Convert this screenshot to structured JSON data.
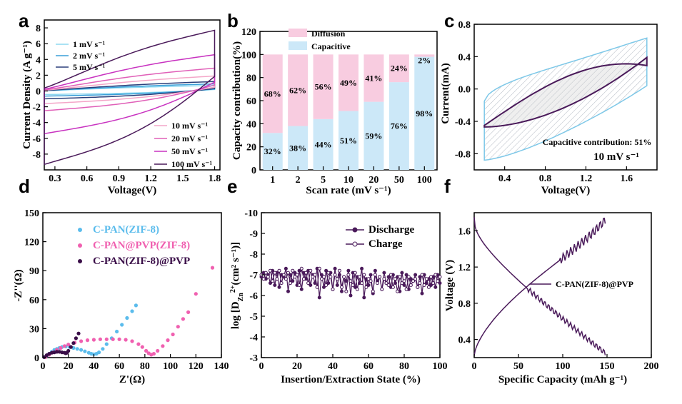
{
  "panels": [
    "a",
    "b",
    "c",
    "d",
    "e",
    "f"
  ],
  "chart_data": [
    {
      "panel": "a",
      "type": "line",
      "xlabel": "Voltage(V)",
      "ylabel": "Current Density (A g⁻¹)",
      "xlim": [
        0.2,
        1.85
      ],
      "ylim": [
        -10,
        9
      ],
      "xticks": [
        "0.3",
        "0.6",
        "0.9",
        "1.2",
        "1.5",
        "1.8"
      ],
      "xtick_values": [
        0.3,
        0.6,
        0.9,
        1.2,
        1.5,
        1.8
      ],
      "yticks": [
        "-8",
        "-6",
        "-4",
        "-2",
        "0",
        "2",
        "4",
        "6",
        "8"
      ],
      "ytick_values": [
        -8,
        -6,
        -4,
        -2,
        0,
        2,
        4,
        6,
        8
      ],
      "series": [
        {
          "name": "1 mV s⁻¹",
          "color": "#8ed8f0",
          "upper": 0.7,
          "lower": -0.45
        },
        {
          "name": "2 mV s⁻¹",
          "color": "#3a9fd8",
          "upper": 0.9,
          "lower": -0.65
        },
        {
          "name": "5 mV s⁻¹",
          "color": "#2b3f7a",
          "upper": 1.2,
          "lower": -1.0
        },
        {
          "name": "10 mV s⁻¹",
          "color": "#f4a6c8",
          "upper": 1.9,
          "lower": -1.6
        },
        {
          "name": "20 mV s⁻¹",
          "color": "#e060b8",
          "upper": 2.9,
          "lower": -2.5
        },
        {
          "name": "50 mV s⁻¹",
          "color": "#c832c0",
          "upper": 4.6,
          "lower": -5.4
        },
        {
          "name": "100 mV s⁻¹",
          "color": "#4a1a5a",
          "upper": 7.7,
          "lower": -9.3
        }
      ]
    },
    {
      "panel": "b",
      "type": "bar",
      "xlabel": "Scan rate (mV s⁻¹)",
      "ylabel": "Capacity contribution(%)",
      "categories": [
        "1",
        "2",
        "5",
        "10",
        "20",
        "50",
        "100"
      ],
      "ylim": [
        0,
        120
      ],
      "yticks": [
        "0",
        "20",
        "40",
        "60",
        "80",
        "100",
        "120"
      ],
      "ytick_values": [
        0,
        20,
        40,
        60,
        80,
        100,
        120
      ],
      "series": [
        {
          "name": "Capacitive",
          "color": "#cce8f8",
          "values": [
            32,
            38,
            44,
            51,
            59,
            76,
            98
          ],
          "labels": [
            "32%",
            "38%",
            "44%",
            "51%",
            "59%",
            "76%",
            "98%"
          ]
        },
        {
          "name": "Diffusion",
          "color": "#f8cce0",
          "values": [
            68,
            62,
            56,
            49,
            41,
            24,
            2
          ],
          "labels": [
            "68%",
            "62%",
            "56%",
            "49%",
            "41%",
            "24%",
            "2%"
          ]
        }
      ]
    },
    {
      "panel": "c",
      "type": "line",
      "xlabel": "Voltage(V)",
      "ylabel": "Current(mA)",
      "xlim": [
        0.1,
        1.9
      ],
      "ylim": [
        -1.0,
        0.8
      ],
      "xticks": [
        "0.4",
        "0.8",
        "1.2",
        "1.6"
      ],
      "xtick_values": [
        0.4,
        0.8,
        1.2,
        1.6
      ],
      "yticks": [
        "-0.8",
        "-0.4",
        "0.0",
        "0.4",
        "0.8"
      ],
      "ytick_values": [
        -0.8,
        -0.4,
        0.0,
        0.4,
        0.8
      ],
      "annotation": "Capacitive contribution: 51%",
      "condition": "10 mV s⁻¹",
      "colors": {
        "total": "#7ec8e8",
        "capacitive": "#4a1a5a"
      }
    },
    {
      "panel": "d",
      "type": "scatter",
      "xlabel": "Z'(Ω)",
      "ylabel": "-Z''(Ω)",
      "xlim": [
        0,
        140
      ],
      "ylim": [
        0,
        150
      ],
      "xticks": [
        "0",
        "20",
        "40",
        "60",
        "80",
        "100",
        "120",
        "140"
      ],
      "xtick_values": [
        0,
        20,
        40,
        60,
        80,
        100,
        120,
        140
      ],
      "yticks": [
        "0",
        "30",
        "60",
        "90",
        "120",
        "150"
      ],
      "ytick_values": [
        0,
        30,
        60,
        90,
        120,
        150
      ],
      "series": [
        {
          "name": "C-PAN(ZIF-8)",
          "color": "#5bbcec",
          "points": [
            [
              1,
              0.5
            ],
            [
              3,
              2
            ],
            [
              5,
              4
            ],
            [
              7,
              6
            ],
            [
              9,
              8
            ],
            [
              11,
              9
            ],
            [
              13,
              10
            ],
            [
              15,
              11
            ],
            [
              18,
              11.5
            ],
            [
              21,
              11
            ],
            [
              24,
              10
            ],
            [
              27,
              9
            ],
            [
              30,
              8
            ],
            [
              33,
              6.5
            ],
            [
              36,
              5
            ],
            [
              38,
              4
            ],
            [
              40,
              3.5
            ],
            [
              42,
              4
            ],
            [
              44,
              5.5
            ],
            [
              47,
              9
            ],
            [
              50,
              14
            ],
            [
              54,
              20
            ],
            [
              58,
              27
            ],
            [
              62,
              34
            ],
            [
              66,
              41
            ],
            [
              70,
              48
            ],
            [
              73,
              54
            ]
          ]
        },
        {
          "name": "C-PAN@PVP(ZIF-8)",
          "color": "#f060b0",
          "points": [
            [
              2,
              0.5
            ],
            [
              5,
              3
            ],
            [
              8,
              5.5
            ],
            [
              11,
              8
            ],
            [
              14,
              10
            ],
            [
              17,
              12
            ],
            [
              20,
              13.5
            ],
            [
              25,
              15.5
            ],
            [
              30,
              17
            ],
            [
              35,
              18
            ],
            [
              40,
              18.5
            ],
            [
              45,
              19
            ],
            [
              50,
              19
            ],
            [
              55,
              19
            ],
            [
              60,
              19
            ],
            [
              65,
              18.5
            ],
            [
              70,
              17
            ],
            [
              75,
              14
            ],
            [
              78,
              11
            ],
            [
              81,
              7
            ],
            [
              83,
              4.5
            ],
            [
              85,
              3
            ],
            [
              87,
              4
            ],
            [
              90,
              7
            ],
            [
              94,
              12
            ],
            [
              98,
              18
            ],
            [
              102,
              24
            ],
            [
              106,
              32
            ],
            [
              110,
              40
            ],
            [
              114,
              47
            ],
            [
              120,
              66
            ],
            [
              133,
              93
            ]
          ]
        },
        {
          "name": "C-PAN(ZIF-8)@PVP",
          "color": "#3a0e48",
          "points": [
            [
              1,
              0.5
            ],
            [
              3,
              2.5
            ],
            [
              5,
              4
            ],
            [
              7,
              5
            ],
            [
              9,
              5.5
            ],
            [
              11,
              6
            ],
            [
              13,
              6
            ],
            [
              15,
              5.5
            ],
            [
              17,
              5
            ],
            [
              18,
              4.5
            ],
            [
              19,
              5
            ],
            [
              20,
              7
            ],
            [
              22,
              11
            ],
            [
              24,
              15
            ],
            [
              26,
              20
            ],
            [
              28,
              25
            ]
          ]
        }
      ]
    },
    {
      "panel": "e",
      "type": "line",
      "xlabel": "Insertion/Extraction State (%)",
      "ylabel": "log [D",
      "ylabel_sub": "Zn",
      "ylabel_sup": "2+",
      "ylabel_tail": "(cm² s⁻¹)]",
      "xlim": [
        0,
        100
      ],
      "ylim": [
        -3,
        -10
      ],
      "xticks": [
        "0",
        "20",
        "40",
        "60",
        "80",
        "100"
      ],
      "xtick_values": [
        0,
        20,
        40,
        60,
        80,
        100
      ],
      "yticks": [
        "-3",
        "-4",
        "-5",
        "-6",
        "-7",
        "-8",
        "-9",
        "-10"
      ],
      "ytick_values": [
        -3,
        -4,
        -5,
        -6,
        -7,
        -8,
        -9,
        -10
      ],
      "series": [
        {
          "name": "Discharge",
          "color": "#4a1a5a",
          "filled": true,
          "values": [
            -6.9,
            -7.1,
            -6.8,
            -7.0,
            -6.6,
            -7.2,
            -6.5,
            -7.1,
            -6.4,
            -7.0,
            -6.9,
            -7.3,
            -6.2,
            -7.0,
            -6.7,
            -7.1,
            -6.5,
            -7.2,
            -6.3,
            -7.1,
            -6.8,
            -7.2,
            -6.5,
            -7.0,
            -6.6,
            -7.3,
            -5.9,
            -7.0,
            -6.4,
            -7.2,
            -6.6,
            -7.1,
            -6.3,
            -7.3,
            -6.5,
            -7.0,
            -6.2,
            -6.9,
            -6.7,
            -7.2,
            -6.0,
            -7.1,
            -6.4,
            -6.9,
            -6.6,
            -7.3,
            -5.9,
            -6.8,
            -6.5,
            -7.0,
            -6.1,
            -7.2,
            -6.7,
            -6.9,
            -6.3,
            -7.1,
            -6.6,
            -6.9,
            -6.4,
            -7.0,
            -6.6,
            -6.9,
            -6.2,
            -7.1,
            -6.5,
            -7.0,
            -6.3,
            -6.8,
            -6.7,
            -7.0,
            -6.4,
            -6.9,
            -6.1,
            -7.0,
            -6.6,
            -6.8,
            -6.5,
            -6.9,
            -6.4,
            -7.0,
            -6.6
          ]
        },
        {
          "name": "Charge",
          "color": "#4a1a5a",
          "filled": false,
          "values": [
            -7.0,
            -6.8,
            -7.1,
            -6.9,
            -7.2,
            -6.7,
            -7.1,
            -6.8,
            -7.2,
            -6.6,
            -7.0,
            -6.8,
            -7.1,
            -6.6,
            -7.2,
            -6.9,
            -7.0,
            -6.5,
            -7.3,
            -6.8,
            -7.1,
            -6.6,
            -7.2,
            -6.9,
            -7.0,
            -6.4,
            -7.3,
            -6.8,
            -6.9,
            -6.5,
            -7.1,
            -6.9,
            -6.3,
            -7.0,
            -6.8,
            -7.2,
            -6.4,
            -6.9,
            -6.2,
            -7.0,
            -6.7,
            -6.5,
            -7.1,
            -6.3,
            -6.9,
            -6.6,
            -7.0,
            -6.4,
            -6.8,
            -6.7,
            -6.2,
            -7.0,
            -6.6,
            -6.9,
            -6.3,
            -6.8,
            -6.6,
            -6.5,
            -7.0,
            -6.4,
            -6.8,
            -6.2,
            -6.9,
            -6.6,
            -6.7,
            -6.3,
            -6.9,
            -6.5,
            -6.7,
            -6.8,
            -6.4,
            -6.6,
            -7.0,
            -6.5,
            -6.8,
            -6.4,
            -6.9,
            -6.6,
            -7.0,
            -6.7,
            -6.9
          ]
        }
      ]
    },
    {
      "panel": "f",
      "type": "line",
      "xlabel": "Specific Capacity (mAh g⁻¹)",
      "ylabel": "Voltage (V)",
      "xlim": [
        0,
        200
      ],
      "ylim": [
        0.2,
        1.8
      ],
      "xticks": [
        "0",
        "50",
        "100",
        "150",
        "200"
      ],
      "xtick_values": [
        0,
        50,
        100,
        150,
        200
      ],
      "yticks": [
        "0.4",
        "0.8",
        "1.2",
        "1.6"
      ],
      "ytick_values": [
        0.4,
        0.8,
        1.2,
        1.6
      ],
      "series": [
        {
          "name": "C-PAN(ZIF-8)@PVP",
          "color": "#4a1a5a",
          "max_capacity": 148
        }
      ]
    }
  ]
}
